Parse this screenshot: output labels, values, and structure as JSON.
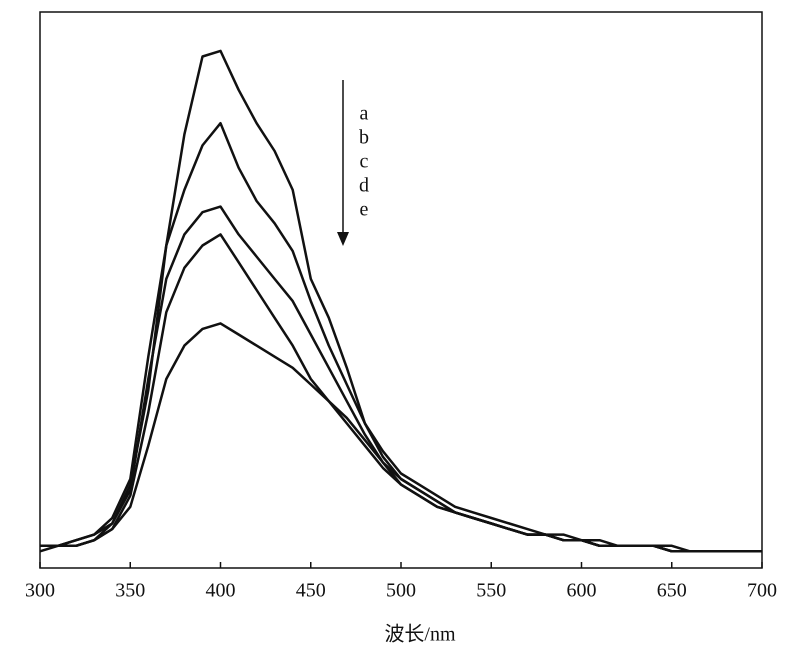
{
  "chart_data": {
    "type": "line",
    "x_label": "波长/nm",
    "x": [
      300,
      310,
      320,
      330,
      340,
      350,
      360,
      370,
      380,
      390,
      400,
      410,
      420,
      430,
      440,
      450,
      460,
      470,
      480,
      490,
      500,
      510,
      520,
      530,
      540,
      550,
      560,
      570,
      580,
      590,
      600,
      610,
      620,
      630,
      640,
      650,
      660,
      670,
      680,
      690,
      700
    ],
    "series": [
      {
        "name": "a",
        "color": "#111111",
        "values": [
          4,
          4,
          5,
          6,
          8,
          15,
          32,
          58,
          78,
          92,
          93,
          86,
          80,
          75,
          68,
          52,
          45,
          36,
          26,
          21,
          17,
          15,
          13,
          11,
          10,
          9,
          8,
          7,
          6,
          6,
          5,
          5,
          4,
          4,
          4,
          4,
          3,
          3,
          3,
          3,
          3
        ]
      },
      {
        "name": "b",
        "color": "#111111",
        "values": [
          4,
          4,
          5,
          6,
          9,
          16,
          38,
          58,
          68,
          76,
          80,
          72,
          66,
          62,
          57,
          48,
          40,
          33,
          26,
          20,
          16,
          14,
          12,
          10,
          9,
          8,
          7,
          6,
          6,
          5,
          5,
          4,
          4,
          4,
          4,
          3,
          3,
          3,
          3,
          3,
          3
        ]
      },
      {
        "name": "c",
        "color": "#111111",
        "values": [
          4,
          4,
          4,
          5,
          8,
          14,
          34,
          52,
          60,
          64,
          65,
          60,
          56,
          52,
          48,
          42,
          36,
          30,
          24,
          19,
          15,
          13,
          11,
          10,
          9,
          8,
          7,
          6,
          6,
          5,
          5,
          4,
          4,
          4,
          4,
          3,
          3,
          3,
          3,
          3,
          3
        ]
      },
      {
        "name": "d",
        "color": "#111111",
        "values": [
          4,
          4,
          4,
          5,
          7,
          13,
          28,
          46,
          54,
          58,
          60,
          55,
          50,
          45,
          40,
          34,
          30,
          26,
          22,
          18,
          15,
          13,
          11,
          10,
          9,
          8,
          7,
          6,
          6,
          5,
          5,
          4,
          4,
          4,
          4,
          3,
          3,
          3,
          3,
          3,
          3
        ]
      },
      {
        "name": "e",
        "color": "#111111",
        "values": [
          3,
          4,
          4,
          5,
          7,
          11,
          22,
          34,
          40,
          43,
          44,
          42,
          40,
          38,
          36,
          33,
          30,
          27,
          23,
          19,
          16,
          14,
          12,
          10,
          9,
          8,
          7,
          6,
          6,
          5,
          5,
          4,
          4,
          4,
          4,
          3,
          3,
          3,
          3,
          3,
          3
        ]
      }
    ],
    "xlim": [
      300,
      700
    ],
    "xticks": [
      300,
      350,
      400,
      450,
      500,
      550,
      600,
      650,
      700
    ],
    "ylim": [
      0,
      100
    ]
  }
}
